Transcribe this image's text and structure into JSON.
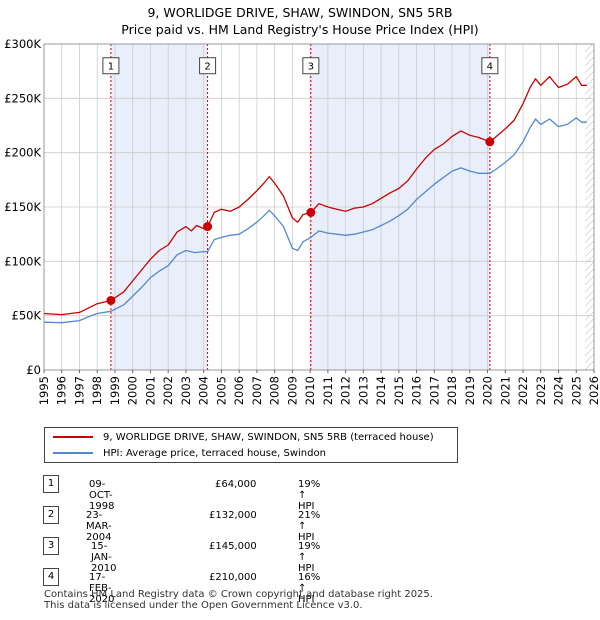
{
  "title": {
    "line1": "9, WORLIDGE DRIVE, SHAW, SWINDON, SN5 5RB",
    "line2": "Price paid vs. HM Land Registry's House Price Index (HPI)"
  },
  "colors": {
    "property": "#cc0000",
    "hpi": "#5588cc",
    "shade": "#e8eefa",
    "vline": "#cc0000",
    "grid": "#cccccc"
  },
  "chart_data": {
    "type": "line",
    "title": "Price paid vs. HM Land Registry's House Price Index (HPI)",
    "xlabel": "",
    "ylabel": "",
    "xlim": [
      1995,
      2026
    ],
    "ylim": [
      0,
      300000
    ],
    "y_ticks": [
      {
        "value": 0,
        "label": "£0"
      },
      {
        "value": 50000,
        "label": "£50K"
      },
      {
        "value": 100000,
        "label": "£100K"
      },
      {
        "value": 150000,
        "label": "£150K"
      },
      {
        "value": 200000,
        "label": "£200K"
      },
      {
        "value": 250000,
        "label": "£250K"
      },
      {
        "value": 300000,
        "label": "£300K"
      }
    ],
    "x_ticks": [
      "1995",
      "1996",
      "1997",
      "1998",
      "1999",
      "2000",
      "2001",
      "2002",
      "2003",
      "2004",
      "2005",
      "2006",
      "2007",
      "2008",
      "2009",
      "2010",
      "2011",
      "2012",
      "2013",
      "2014",
      "2015",
      "2016",
      "2017",
      "2018",
      "2019",
      "2020",
      "2021",
      "2022",
      "2023",
      "2024",
      "2025",
      "2026"
    ],
    "shaded_spans": [
      [
        1998.77,
        2004.22
      ],
      [
        2010.04,
        2020.13
      ]
    ],
    "hatched_from": 2025.5,
    "series": [
      {
        "name": "9, WORLIDGE DRIVE, SHAW, SWINDON, SN5 5RB (terraced house)",
        "points": [
          [
            1995.0,
            52000
          ],
          [
            1996.0,
            51000
          ],
          [
            1997.0,
            53000
          ],
          [
            1997.5,
            57000
          ],
          [
            1998.0,
            61000
          ],
          [
            1998.77,
            64000
          ],
          [
            1999.5,
            72000
          ],
          [
            2000.0,
            82000
          ],
          [
            2000.5,
            92000
          ],
          [
            2001.0,
            102000
          ],
          [
            2001.5,
            110000
          ],
          [
            2002.0,
            115000
          ],
          [
            2002.5,
            127000
          ],
          [
            2003.0,
            132000
          ],
          [
            2003.3,
            128000
          ],
          [
            2003.6,
            133000
          ],
          [
            2004.0,
            130000
          ],
          [
            2004.22,
            132000
          ],
          [
            2004.6,
            145000
          ],
          [
            2005.0,
            148000
          ],
          [
            2005.5,
            146000
          ],
          [
            2006.0,
            150000
          ],
          [
            2006.5,
            157000
          ],
          [
            2007.0,
            165000
          ],
          [
            2007.4,
            172000
          ],
          [
            2007.7,
            178000
          ],
          [
            2008.0,
            172000
          ],
          [
            2008.5,
            160000
          ],
          [
            2009.0,
            140000
          ],
          [
            2009.3,
            136000
          ],
          [
            2009.6,
            143000
          ],
          [
            2010.04,
            145000
          ],
          [
            2010.5,
            153000
          ],
          [
            2011.0,
            150000
          ],
          [
            2011.5,
            148000
          ],
          [
            2012.0,
            146000
          ],
          [
            2012.5,
            149000
          ],
          [
            2013.0,
            150000
          ],
          [
            2013.5,
            153000
          ],
          [
            2014.0,
            158000
          ],
          [
            2014.5,
            163000
          ],
          [
            2015.0,
            167000
          ],
          [
            2015.5,
            174000
          ],
          [
            2016.0,
            185000
          ],
          [
            2016.5,
            195000
          ],
          [
            2017.0,
            203000
          ],
          [
            2017.5,
            208000
          ],
          [
            2018.0,
            215000
          ],
          [
            2018.5,
            220000
          ],
          [
            2019.0,
            216000
          ],
          [
            2019.5,
            214000
          ],
          [
            2020.13,
            210000
          ],
          [
            2020.5,
            215000
          ],
          [
            2021.0,
            222000
          ],
          [
            2021.5,
            230000
          ],
          [
            2022.0,
            245000
          ],
          [
            2022.4,
            260000
          ],
          [
            2022.7,
            268000
          ],
          [
            2023.0,
            262000
          ],
          [
            2023.5,
            270000
          ],
          [
            2024.0,
            260000
          ],
          [
            2024.5,
            263000
          ],
          [
            2025.0,
            270000
          ],
          [
            2025.3,
            262000
          ],
          [
            2025.6,
            262000
          ]
        ]
      },
      {
        "name": "HPI: Average price, terraced house, Swindon",
        "points": [
          [
            1995.0,
            44000
          ],
          [
            1996.0,
            43500
          ],
          [
            1997.0,
            45500
          ],
          [
            1997.5,
            49000
          ],
          [
            1998.0,
            52000
          ],
          [
            1998.77,
            54000
          ],
          [
            1999.5,
            60000
          ],
          [
            2000.0,
            68000
          ],
          [
            2000.5,
            76000
          ],
          [
            2001.0,
            85000
          ],
          [
            2001.5,
            91000
          ],
          [
            2002.0,
            96000
          ],
          [
            2002.5,
            106000
          ],
          [
            2003.0,
            110000
          ],
          [
            2003.5,
            108000
          ],
          [
            2004.0,
            109000
          ],
          [
            2004.22,
            109000
          ],
          [
            2004.6,
            120000
          ],
          [
            2005.0,
            122000
          ],
          [
            2005.5,
            124000
          ],
          [
            2006.0,
            125000
          ],
          [
            2006.5,
            130000
          ],
          [
            2007.0,
            136000
          ],
          [
            2007.4,
            142000
          ],
          [
            2007.7,
            147000
          ],
          [
            2008.0,
            142000
          ],
          [
            2008.5,
            132000
          ],
          [
            2009.0,
            112000
          ],
          [
            2009.3,
            110000
          ],
          [
            2009.6,
            118000
          ],
          [
            2010.04,
            122000
          ],
          [
            2010.5,
            128000
          ],
          [
            2011.0,
            126000
          ],
          [
            2011.5,
            125000
          ],
          [
            2012.0,
            124000
          ],
          [
            2012.5,
            125000
          ],
          [
            2013.0,
            127000
          ],
          [
            2013.5,
            129000
          ],
          [
            2014.0,
            133000
          ],
          [
            2014.5,
            137000
          ],
          [
            2015.0,
            142000
          ],
          [
            2015.5,
            148000
          ],
          [
            2016.0,
            157000
          ],
          [
            2016.5,
            164000
          ],
          [
            2017.0,
            171000
          ],
          [
            2017.5,
            177000
          ],
          [
            2018.0,
            183000
          ],
          [
            2018.5,
            186000
          ],
          [
            2019.0,
            183000
          ],
          [
            2019.5,
            181000
          ],
          [
            2020.13,
            181000
          ],
          [
            2020.5,
            185000
          ],
          [
            2021.0,
            191000
          ],
          [
            2021.5,
            198000
          ],
          [
            2022.0,
            210000
          ],
          [
            2022.4,
            223000
          ],
          [
            2022.7,
            231000
          ],
          [
            2023.0,
            226000
          ],
          [
            2023.5,
            231000
          ],
          [
            2024.0,
            224000
          ],
          [
            2024.5,
            226000
          ],
          [
            2025.0,
            232000
          ],
          [
            2025.3,
            228000
          ],
          [
            2025.6,
            228000
          ]
        ]
      }
    ],
    "sales": [
      {
        "label": "1",
        "x": 1998.77,
        "price": 64000
      },
      {
        "label": "2",
        "x": 2004.22,
        "price": 132000
      },
      {
        "label": "3",
        "x": 2010.04,
        "price": 145000
      },
      {
        "label": "4",
        "x": 2020.13,
        "price": 210000
      }
    ],
    "marker_label_level": 280000
  },
  "legend": {
    "property": "9, WORLIDGE DRIVE, SHAW, SWINDON, SN5 5RB (terraced house)",
    "hpi": "HPI: Average price, terraced house, Swindon"
  },
  "events": [
    {
      "num": "1",
      "date": "09-OCT-1998",
      "price": "£64,000",
      "hpi": "19% ↑ HPI"
    },
    {
      "num": "2",
      "date": "23-MAR-2004",
      "price": "£132,000",
      "hpi": "21% ↑ HPI"
    },
    {
      "num": "3",
      "date": "15-JAN-2010",
      "price": "£145,000",
      "hpi": "19% ↑ HPI"
    },
    {
      "num": "4",
      "date": "17-FEB-2020",
      "price": "£210,000",
      "hpi": "16% ↑ HPI"
    }
  ],
  "footer": {
    "line1": "Contains HM Land Registry data © Crown copyright and database right 2025.",
    "line2": "This data is licensed under the Open Government Licence v3.0."
  }
}
